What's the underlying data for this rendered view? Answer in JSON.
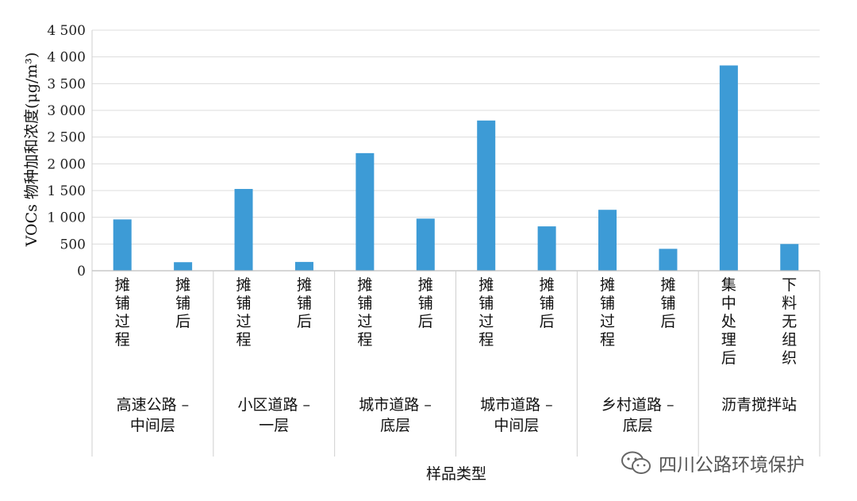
{
  "chart_data": {
    "type": "bar",
    "ylabel": "VOCs 物种加和浓度(μg/m³)",
    "xlabel": "样品类型",
    "ylim": [
      0,
      4500
    ],
    "ytick_step": 500,
    "yticks": [
      "0",
      "500",
      "1 000",
      "1 500",
      "2 000",
      "2 500",
      "3 000",
      "3 500",
      "4 000",
      "4 500"
    ],
    "grid": true,
    "bar_color": "#3d9bd6",
    "groups": [
      {
        "label_lines": [
          "高速公路 –",
          "中间层"
        ],
        "bars": [
          {
            "label": "摊铺过程",
            "value": 960
          },
          {
            "label": "摊铺后",
            "value": 160
          }
        ]
      },
      {
        "label_lines": [
          "小区道路 –",
          "一层"
        ],
        "bars": [
          {
            "label": "摊铺过程",
            "value": 1530
          },
          {
            "label": "摊铺后",
            "value": 165
          }
        ]
      },
      {
        "label_lines": [
          "城市道路 –",
          "底层"
        ],
        "bars": [
          {
            "label": "摊铺过程",
            "value": 2200
          },
          {
            "label": "摊铺后",
            "value": 975
          }
        ]
      },
      {
        "label_lines": [
          "城市道路 –",
          "中间层"
        ],
        "bars": [
          {
            "label": "摊铺过程",
            "value": 2810
          },
          {
            "label": "摊铺后",
            "value": 830
          }
        ]
      },
      {
        "label_lines": [
          "乡村道路 –",
          "底层"
        ],
        "bars": [
          {
            "label": "摊铺过程",
            "value": 1140
          },
          {
            "label": "摊铺后",
            "value": 410
          }
        ]
      },
      {
        "label_lines": [
          "沥青搅拌站"
        ],
        "bars": [
          {
            "label": "集中处理后",
            "value": 3840
          },
          {
            "label": "下料无组织",
            "value": 500
          }
        ]
      }
    ]
  },
  "watermark": {
    "text": "四川公路环境保护",
    "icon": "wechat-icon"
  }
}
